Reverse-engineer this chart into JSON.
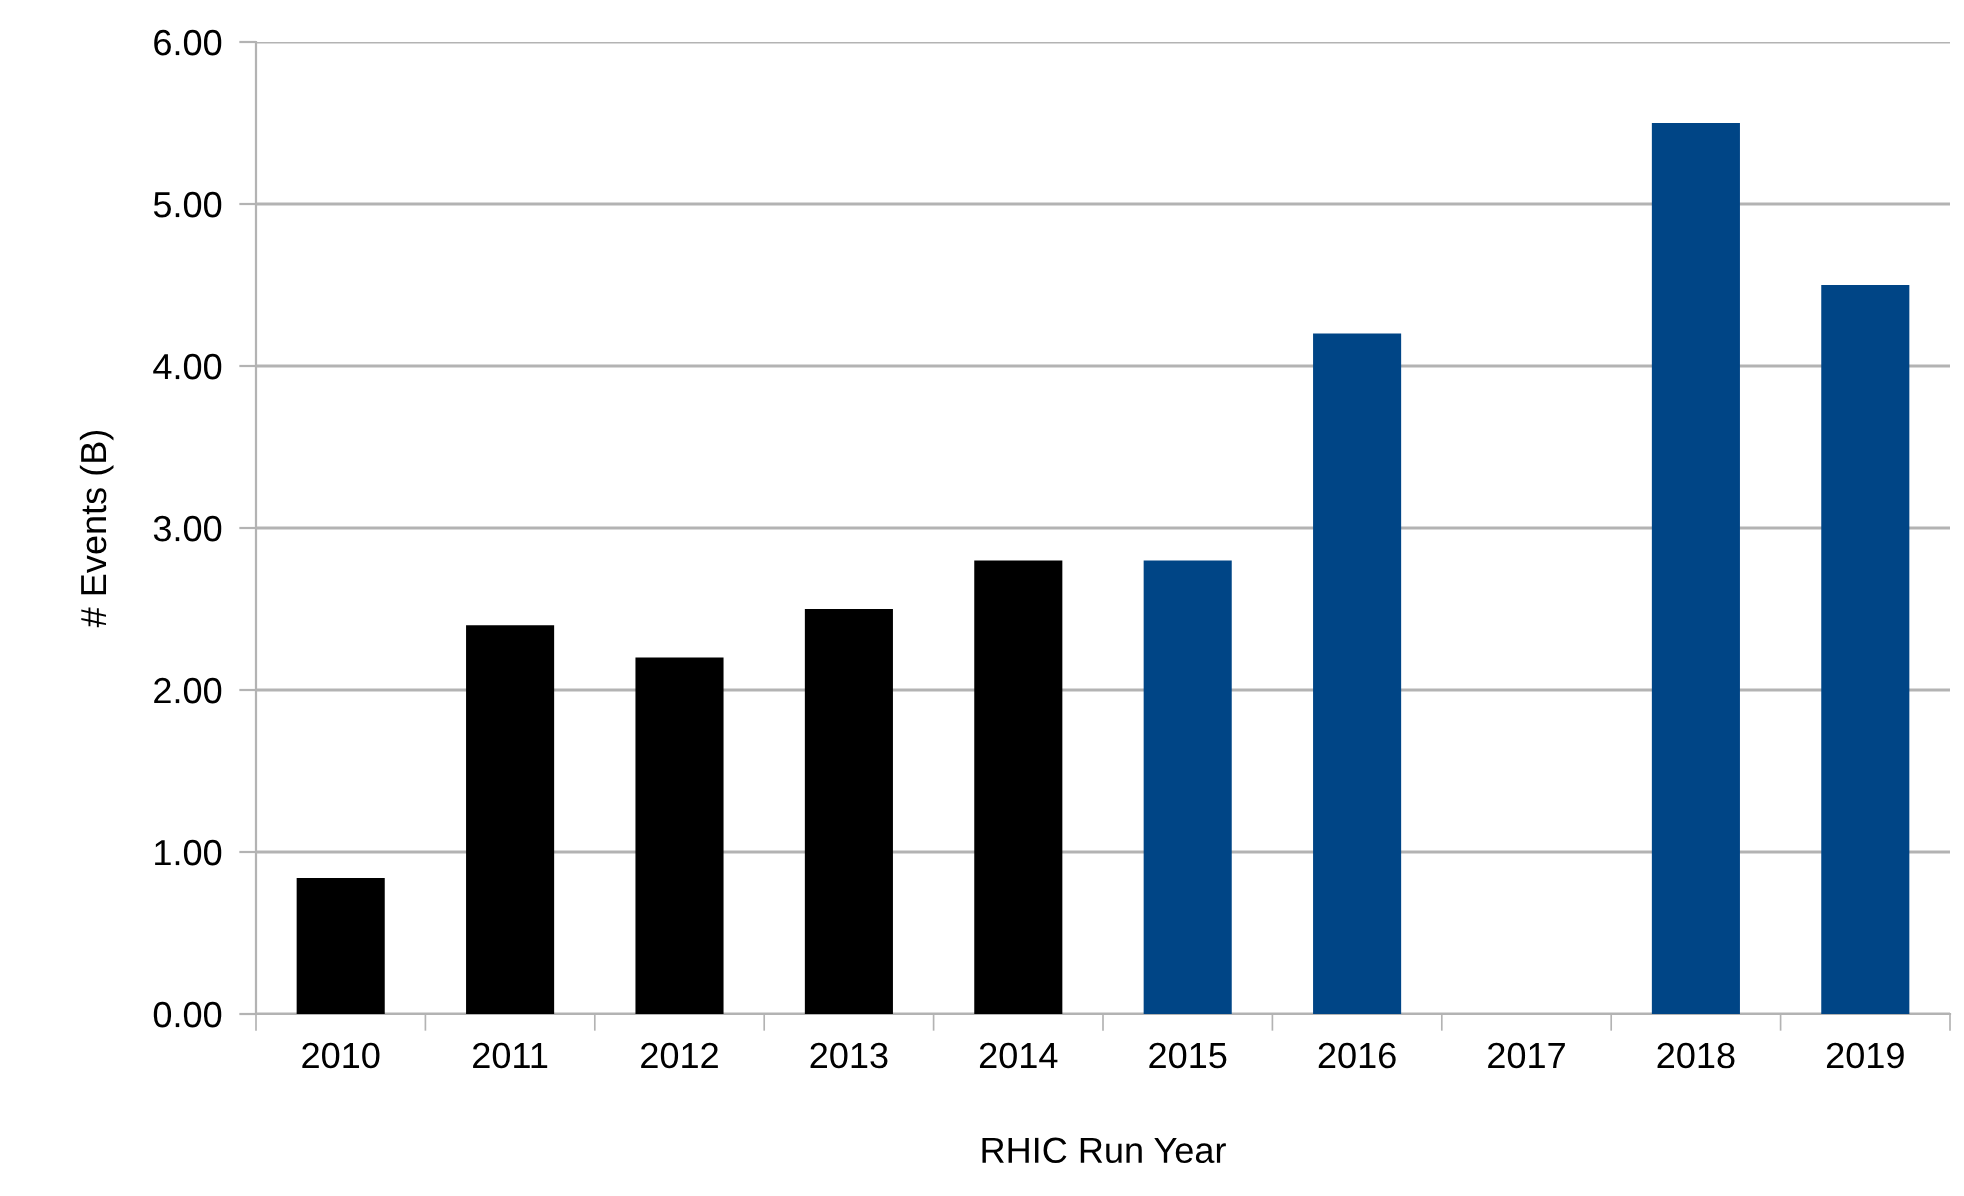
{
  "chart_data": {
    "type": "bar",
    "xlabel": "RHIC Run Year",
    "ylabel": "# Events (B)",
    "categories": [
      "2010",
      "2011",
      "2012",
      "2013",
      "2014",
      "2015",
      "2016",
      "2017",
      "2018",
      "2019"
    ],
    "values": [
      0.84,
      2.4,
      2.2,
      2.5,
      2.8,
      2.8,
      4.2,
      null,
      5.5,
      4.5
    ],
    "colors": [
      "#000000",
      "#000000",
      "#000000",
      "#000000",
      "#000000",
      "#004586",
      "#004586",
      "#004586",
      "#004586",
      "#004586"
    ],
    "ylim": [
      0,
      6
    ],
    "yticks": [
      {
        "value": 0,
        "label": "0.00"
      },
      {
        "value": 1,
        "label": "1.00"
      },
      {
        "value": 2,
        "label": "2.00"
      },
      {
        "value": 3,
        "label": "3.00"
      },
      {
        "value": 4,
        "label": "4.00"
      },
      {
        "value": 5,
        "label": "5.00"
      },
      {
        "value": 6,
        "label": "6.00"
      }
    ],
    "grid": "y",
    "legend": false
  }
}
